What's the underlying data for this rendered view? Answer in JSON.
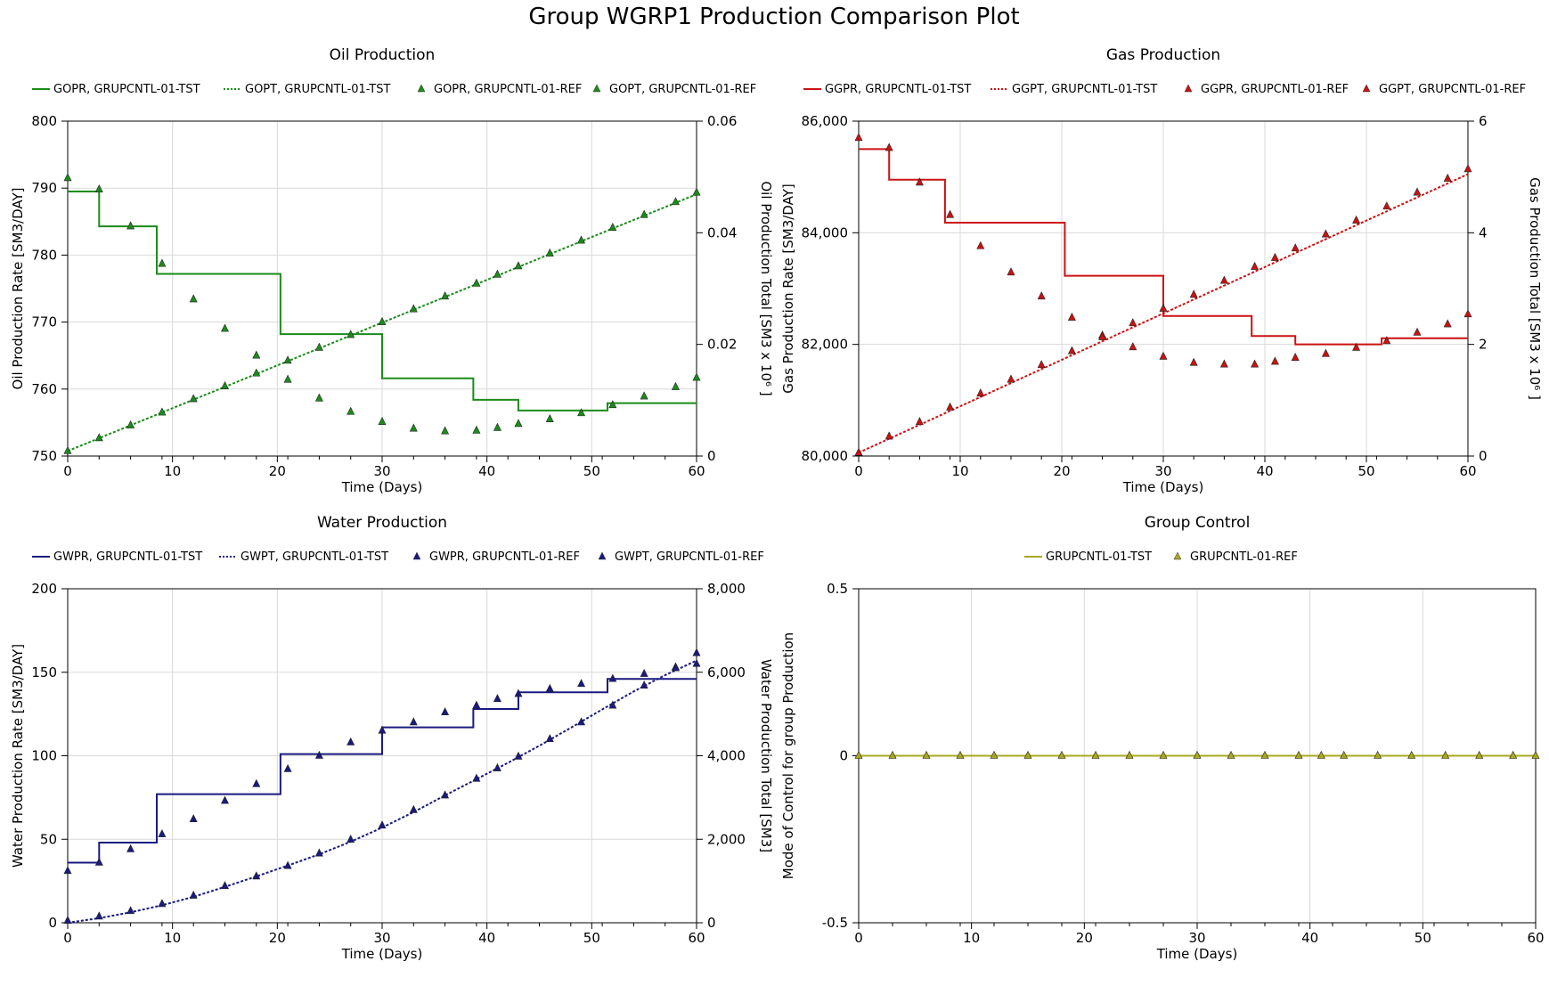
{
  "title": "Group WGRP1 Production Comparison Plot",
  "chart_data": [
    {
      "type": "line",
      "title": "Oil Production",
      "xlabel": "Time (Days)",
      "ylabel": "Oil Production Rate [SM3/DAY]",
      "y2label": "Oil Production Total [SM3 x 10⁶ ]",
      "xlim": [
        0,
        60
      ],
      "ylim": [
        750,
        800
      ],
      "y2lim": [
        0,
        0.06
      ],
      "xticks": [
        "0",
        "10",
        "20",
        "30",
        "40",
        "50",
        "60"
      ],
      "yticks": [
        "750",
        "760",
        "770",
        "780",
        "790",
        "800"
      ],
      "y2ticks": [
        "0",
        "0.02",
        "0.04",
        "0.06"
      ],
      "color": "#1a8c1a",
      "series": [
        {
          "name": "GOPR, GRUPCNTL-01-TST",
          "style": "step",
          "axis": "left",
          "x": [
            0,
            3,
            8.5,
            20.3,
            30,
            38.7,
            43,
            51.5,
            60
          ],
          "y": [
            789.5,
            784.3,
            777.2,
            768.2,
            761.6,
            758.4,
            756.8,
            757.9,
            757.9
          ]
        },
        {
          "name": "GOPT, GRUPCNTL-01-TST",
          "style": "dotted",
          "axis": "right",
          "x": [
            0,
            60
          ],
          "y": [
            0.0009,
            0.0469
          ]
        },
        {
          "name": "GOPR, GRUPCNTL-01-REF",
          "style": "marker",
          "axis": "left",
          "x": [
            0,
            3,
            6,
            9,
            12,
            15,
            18,
            21,
            24,
            27,
            30,
            33,
            36,
            39,
            41,
            43,
            46,
            49,
            52,
            55,
            58,
            60
          ],
          "y": [
            791.5,
            789.8,
            784.3,
            778.7,
            773.4,
            769.0,
            765.0,
            761.4,
            758.6,
            756.6,
            755.1,
            754.1,
            753.7,
            753.8,
            754.2,
            754.8,
            755.5,
            756.4,
            757.6,
            758.9,
            760.3,
            761.7
          ]
        },
        {
          "name": "GOPT, GRUPCNTL-01-REF",
          "style": "marker",
          "axis": "right",
          "x": [
            0,
            3,
            6,
            9,
            12,
            15,
            18,
            21,
            24,
            27,
            30,
            33,
            36,
            39,
            41,
            43,
            46,
            49,
            52,
            55,
            58,
            60
          ],
          "y": [
            0.0009,
            0.0032,
            0.0055,
            0.0078,
            0.0102,
            0.0125,
            0.0148,
            0.0171,
            0.0194,
            0.0217,
            0.024,
            0.0263,
            0.0286,
            0.0309,
            0.0325,
            0.034,
            0.0363,
            0.0386,
            0.0409,
            0.0432,
            0.0455,
            0.0472
          ]
        }
      ]
    },
    {
      "type": "line",
      "title": "Gas Production",
      "xlabel": "Time (Days)",
      "ylabel": "Gas Production Rate [SM3/DAY]",
      "y2label": "Gas Production Total [SM3 x 10⁶ ]",
      "xlim": [
        0,
        60
      ],
      "ylim": [
        80000,
        86000
      ],
      "y2lim": [
        0,
        6
      ],
      "xticks": [
        "0",
        "10",
        "20",
        "30",
        "40",
        "50",
        "60"
      ],
      "yticks": [
        "80,000",
        "82,000",
        "84,000",
        "86,000"
      ],
      "y2ticks": [
        "0",
        "2",
        "4",
        "6"
      ],
      "color": "#cc1111",
      "series": [
        {
          "name": "GGPR, GRUPCNTL-01-TST",
          "style": "step",
          "axis": "left",
          "x": [
            0,
            3,
            8.5,
            20.3,
            30,
            38.7,
            43,
            51.5,
            60
          ],
          "y": [
            85500,
            84950,
            84180,
            83230,
            82510,
            82150,
            82000,
            82110,
            82110
          ]
        },
        {
          "name": "GGPT, GRUPCNTL-01-TST",
          "style": "dotted",
          "axis": "right",
          "x": [
            0,
            60
          ],
          "y": [
            0.06,
            5.05
          ]
        },
        {
          "name": "GGPR, GRUPCNTL-01-REF",
          "style": "marker",
          "axis": "left",
          "x": [
            0,
            3,
            6,
            9,
            12,
            15,
            18,
            21,
            24,
            27,
            30,
            33,
            36,
            39,
            41,
            43,
            46,
            49,
            52,
            55,
            58,
            60
          ],
          "y": [
            85700,
            85520,
            84900,
            84320,
            83760,
            83290,
            82860,
            82480,
            82160,
            81950,
            81780,
            81670,
            81640,
            81640,
            81690,
            81760,
            81830,
            81940,
            82060,
            82210,
            82360,
            82540
          ]
        },
        {
          "name": "GGPT, GRUPCNTL-01-REF",
          "style": "marker",
          "axis": "right",
          "x": [
            0,
            3,
            6,
            9,
            12,
            15,
            18,
            21,
            24,
            27,
            30,
            33,
            36,
            39,
            41,
            43,
            46,
            49,
            52,
            55,
            58,
            60
          ],
          "y": [
            0.06,
            0.35,
            0.61,
            0.87,
            1.12,
            1.37,
            1.63,
            1.88,
            2.13,
            2.38,
            2.64,
            2.89,
            3.14,
            3.39,
            3.55,
            3.72,
            3.97,
            4.22,
            4.47,
            4.72,
            4.97,
            5.14
          ]
        }
      ]
    },
    {
      "type": "line",
      "title": "Water Production",
      "xlabel": "Time (Days)",
      "ylabel": "Water Production Rate [SM3/DAY]",
      "y2label": "Water Production Total [SM3]",
      "xlim": [
        0,
        60
      ],
      "ylim": [
        0,
        200
      ],
      "y2lim": [
        0,
        8000
      ],
      "xticks": [
        "0",
        "10",
        "20",
        "30",
        "40",
        "50",
        "60"
      ],
      "yticks": [
        "0",
        "50",
        "100",
        "150",
        "200"
      ],
      "y2ticks": [
        "0",
        "2,000",
        "4,000",
        "6,000",
        "8,000"
      ],
      "color": "#1a1a80",
      "series": [
        {
          "name": "GWPR, GRUPCNTL-01-TST",
          "style": "step",
          "axis": "left",
          "x": [
            0,
            3,
            8.5,
            20.3,
            30,
            38.7,
            43,
            51.5,
            60
          ],
          "y": [
            36,
            48,
            77,
            101,
            117,
            128,
            138,
            146,
            146
          ]
        },
        {
          "name": "GWPT, GRUPCNTL-01-TST",
          "style": "dotted",
          "axis": "right",
          "x": [
            0,
            3,
            6,
            9,
            12,
            15,
            18,
            21,
            24,
            27,
            30,
            33,
            36,
            39,
            42,
            45,
            48,
            51,
            54,
            57,
            60
          ],
          "y": [
            0,
            110,
            250,
            420,
            620,
            860,
            1110,
            1370,
            1640,
            1940,
            2280,
            2650,
            3050,
            3440,
            3830,
            4240,
            4670,
            5110,
            5540,
            5930,
            6280
          ]
        },
        {
          "name": "GWPR, GRUPCNTL-01-REF",
          "style": "marker",
          "axis": "left",
          "x": [
            0,
            3,
            6,
            9,
            12,
            15,
            18,
            21,
            24,
            27,
            30,
            33,
            36,
            39,
            41,
            43,
            46,
            49,
            52,
            55,
            58,
            60
          ],
          "y": [
            31,
            36,
            44,
            53,
            62,
            73,
            83,
            92,
            100,
            108,
            115,
            120,
            126,
            130,
            134,
            137,
            140,
            143,
            146,
            149,
            153,
            155
          ]
        },
        {
          "name": "GWPT, GRUPCNTL-01-REF",
          "style": "marker",
          "axis": "right",
          "x": [
            0,
            3,
            6,
            9,
            12,
            15,
            18,
            21,
            24,
            27,
            30,
            33,
            36,
            39,
            41,
            43,
            46,
            49,
            52,
            55,
            58,
            60
          ],
          "y": [
            50,
            150,
            280,
            450,
            650,
            880,
            1110,
            1360,
            1660,
            1990,
            2330,
            2700,
            3050,
            3450,
            3700,
            3980,
            4400,
            4800,
            5200,
            5680,
            6100,
            6460
          ]
        }
      ]
    },
    {
      "type": "line",
      "title": "Group Control",
      "xlabel": "Time (Days)",
      "ylabel": "Mode of Control for group Production",
      "xlim": [
        0,
        60
      ],
      "ylim": [
        -0.5,
        0.5
      ],
      "xticks": [
        "0",
        "10",
        "20",
        "30",
        "40",
        "50",
        "60"
      ],
      "yticks": [
        "-0.5",
        "0",
        "0.5"
      ],
      "color": "#a8a820",
      "series": [
        {
          "name": "GRUPCNTL-01-TST",
          "style": "solid",
          "axis": "left",
          "x": [
            0,
            60
          ],
          "y": [
            0,
            0
          ]
        },
        {
          "name": "GRUPCNTL-01-REF",
          "style": "marker",
          "axis": "left",
          "x": [
            0,
            3,
            6,
            9,
            12,
            15,
            18,
            21,
            24,
            27,
            30,
            33,
            36,
            39,
            41,
            43,
            46,
            49,
            52,
            55,
            58,
            60
          ],
          "y": [
            0,
            0,
            0,
            0,
            0,
            0,
            0,
            0,
            0,
            0,
            0,
            0,
            0,
            0,
            0,
            0,
            0,
            0,
            0,
            0,
            0,
            0
          ]
        }
      ]
    }
  ]
}
